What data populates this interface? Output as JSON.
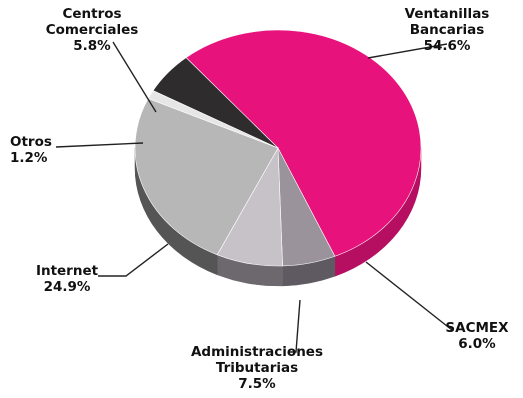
{
  "chart_data": {
    "type": "pie",
    "title": "",
    "legend": "none",
    "slices": [
      {
        "label_lines": [
          "Ventanillas",
          "Bancarias"
        ],
        "value": 54.6,
        "value_label": "54.6%",
        "color": "#e8127c",
        "side_color": "#b60e61"
      },
      {
        "label_lines": [
          "SACMEX"
        ],
        "value": 6.0,
        "value_label": "6.0%",
        "color": "#9a939c",
        "side_color": "#5f5a61"
      },
      {
        "label_lines": [
          "Administraciones",
          "Tributarias"
        ],
        "value": 7.5,
        "value_label": "7.5%",
        "color": "#c7c1c8",
        "side_color": "#6c686e"
      },
      {
        "label_lines": [
          "Internet"
        ],
        "value": 24.9,
        "value_label": "24.9%",
        "color": "#b7b7b7",
        "side_color": "#555555"
      },
      {
        "label_lines": [
          "Otros"
        ],
        "value": 1.2,
        "value_label": "1.2%",
        "color": "#e6e6e6",
        "side_color": "#8a8a8a"
      },
      {
        "label_lines": [
          "Centros",
          "Comerciales"
        ],
        "value": 5.8,
        "value_label": "5.8%",
        "color": "#2f2c2e",
        "side_color": "#1c1a1c"
      }
    ]
  }
}
